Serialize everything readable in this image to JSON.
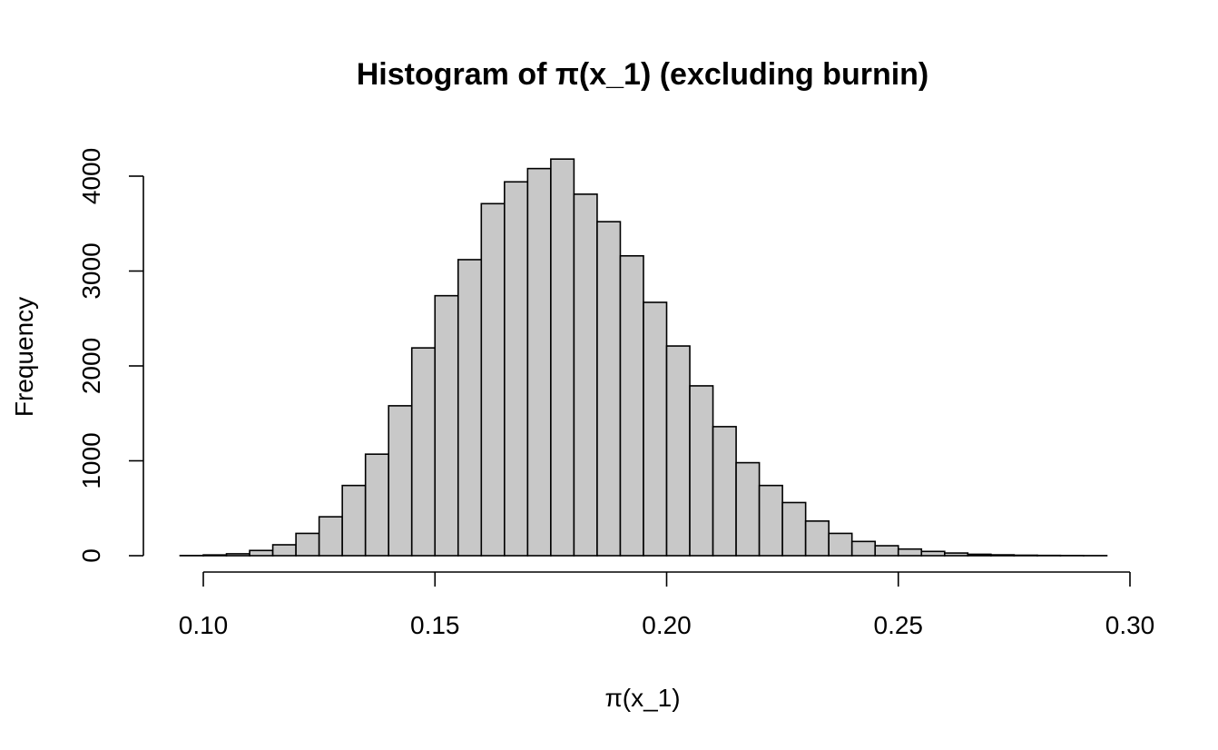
{
  "chart_data": {
    "type": "bar",
    "title": "Histogram of π(x_1) (excluding burnin)",
    "xlabel": "π(x_1)",
    "ylabel": "Frequency",
    "xlim": [
      0.095,
      0.3
    ],
    "ylim": [
      0,
      4200
    ],
    "x_ticks": [
      0.1,
      0.15,
      0.2,
      0.25,
      0.3
    ],
    "x_tick_labels": [
      "0.10",
      "0.15",
      "0.20",
      "0.25",
      "0.30"
    ],
    "y_ticks": [
      0,
      1000,
      2000,
      3000,
      4000
    ],
    "y_tick_labels": [
      "0",
      "1000",
      "2000",
      "3000",
      "4000"
    ],
    "bin_width": 0.005,
    "bin_start": 0.095,
    "values": [
      2,
      8,
      20,
      55,
      115,
      235,
      410,
      740,
      1070,
      1580,
      2190,
      2740,
      3120,
      3710,
      3940,
      4080,
      4180,
      3810,
      3520,
      3160,
      2670,
      2210,
      1790,
      1360,
      980,
      740,
      560,
      365,
      235,
      150,
      105,
      70,
      45,
      28,
      15,
      9,
      5,
      3,
      2,
      1
    ],
    "grid": false,
    "legend": "none"
  }
}
